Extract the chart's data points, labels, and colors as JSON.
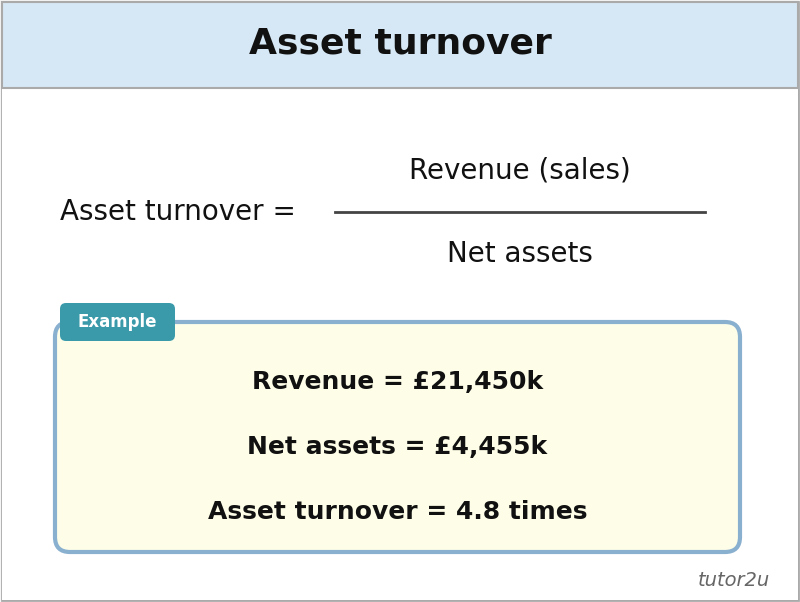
{
  "title": "Asset turnover",
  "title_bg_color": "#d6e8f5",
  "title_fontsize": 26,
  "main_bg_color": "#f5f5f5",
  "border_color": "#aaaaaa",
  "formula_left": "Asset turnover =",
  "formula_numerator": "Revenue (sales)",
  "formula_denominator": "Net assets",
  "formula_fontsize": 20,
  "example_label": "Example",
  "example_label_bg": "#3a9aaa",
  "example_label_color": "#ffffff",
  "example_box_bg": "#fefee8",
  "example_box_border": "#8ab0d0",
  "example_line1": "Revenue = £21,450k",
  "example_line2": "Net assets = £4,455k",
  "example_line3": "Asset turnover = 4.8 times",
  "example_fontsize": 18,
  "watermark": "tutor2u",
  "watermark_color": "#666666",
  "watermark_fontsize": 14
}
